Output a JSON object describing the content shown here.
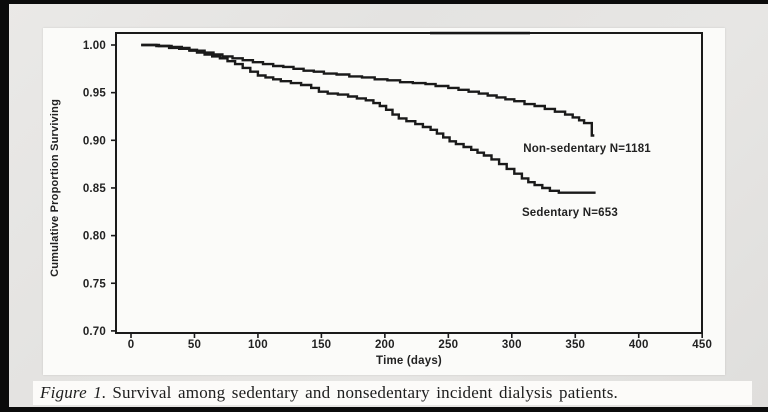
{
  "page": {
    "bg_color": "#e4e3e1",
    "frame_bar_color": "#0b0b0b",
    "panel_color": "#fbfbf9",
    "ink_color": "#1a1a1a"
  },
  "caption": {
    "prefix": "Figure 1.",
    "text": "Survival among sedentary and nonsedentary incident dialysis patients."
  },
  "chart_data": {
    "type": "line",
    "subtype": "kaplan_meier_step",
    "title": "",
    "xlabel": "Time (days)",
    "ylabel": "Cumulative Proportion Surviving",
    "xlim": [
      0,
      450
    ],
    "ylim": [
      0.7,
      1.0
    ],
    "x_ticks": [
      0,
      50,
      100,
      150,
      200,
      250,
      300,
      350,
      400,
      450
    ],
    "y_ticks": [
      "1.00",
      "0.95",
      "0.90",
      "0.85",
      "0.80",
      "0.75",
      "0.70"
    ],
    "grid": false,
    "legend_position": "inline-annotations",
    "series": [
      {
        "name": "Non-sedentary",
        "n": 1181,
        "annotation": {
          "label": "Non-sedentary N=1181",
          "day": 309,
          "value": 0.892
        },
        "points": [
          [
            8,
            1.0
          ],
          [
            22,
            0.999
          ],
          [
            32,
            0.998
          ],
          [
            40,
            0.997
          ],
          [
            46,
            0.995
          ],
          [
            52,
            0.994
          ],
          [
            58,
            0.992
          ],
          [
            65,
            0.99
          ],
          [
            72,
            0.988
          ],
          [
            80,
            0.986
          ],
          [
            88,
            0.984
          ],
          [
            96,
            0.982
          ],
          [
            104,
            0.98
          ],
          [
            112,
            0.978
          ],
          [
            120,
            0.977
          ],
          [
            128,
            0.975
          ],
          [
            136,
            0.973
          ],
          [
            144,
            0.972
          ],
          [
            152,
            0.97
          ],
          [
            162,
            0.969
          ],
          [
            172,
            0.967
          ],
          [
            182,
            0.966
          ],
          [
            192,
            0.964
          ],
          [
            202,
            0.963
          ],
          [
            212,
            0.961
          ],
          [
            222,
            0.96
          ],
          [
            232,
            0.959
          ],
          [
            240,
            0.957
          ],
          [
            250,
            0.955
          ],
          [
            258,
            0.953
          ],
          [
            266,
            0.951
          ],
          [
            274,
            0.949
          ],
          [
            281,
            0.947
          ],
          [
            288,
            0.945
          ],
          [
            295,
            0.943
          ],
          [
            302,
            0.941
          ],
          [
            310,
            0.938
          ],
          [
            318,
            0.936
          ],
          [
            326,
            0.933
          ],
          [
            334,
            0.93
          ],
          [
            342,
            0.927
          ],
          [
            348,
            0.924
          ],
          [
            353,
            0.921
          ],
          [
            357,
            0.918
          ],
          [
            363,
            0.905
          ],
          [
            365,
            0.905
          ]
        ]
      },
      {
        "name": "Sedentary",
        "n": 653,
        "annotation": {
          "label": "Sedentary N=653",
          "day": 308,
          "value": 0.825
        },
        "points": [
          [
            8,
            1.0
          ],
          [
            20,
            0.999
          ],
          [
            30,
            0.997
          ],
          [
            38,
            0.996
          ],
          [
            46,
            0.994
          ],
          [
            52,
            0.992
          ],
          [
            58,
            0.99
          ],
          [
            64,
            0.988
          ],
          [
            70,
            0.986
          ],
          [
            76,
            0.983
          ],
          [
            82,
            0.98
          ],
          [
            88,
            0.976
          ],
          [
            94,
            0.972
          ],
          [
            100,
            0.968
          ],
          [
            106,
            0.966
          ],
          [
            112,
            0.964
          ],
          [
            118,
            0.962
          ],
          [
            126,
            0.96
          ],
          [
            134,
            0.958
          ],
          [
            142,
            0.955
          ],
          [
            148,
            0.951
          ],
          [
            155,
            0.949
          ],
          [
            163,
            0.948
          ],
          [
            171,
            0.946
          ],
          [
            178,
            0.944
          ],
          [
            185,
            0.942
          ],
          [
            191,
            0.939
          ],
          [
            196,
            0.936
          ],
          [
            201,
            0.932
          ],
          [
            206,
            0.927
          ],
          [
            211,
            0.923
          ],
          [
            217,
            0.92
          ],
          [
            224,
            0.917
          ],
          [
            230,
            0.914
          ],
          [
            236,
            0.911
          ],
          [
            241,
            0.907
          ],
          [
            246,
            0.903
          ],
          [
            251,
            0.899
          ],
          [
            256,
            0.896
          ],
          [
            262,
            0.893
          ],
          [
            268,
            0.89
          ],
          [
            273,
            0.887
          ],
          [
            278,
            0.884
          ],
          [
            284,
            0.88
          ],
          [
            290,
            0.875
          ],
          [
            296,
            0.87
          ],
          [
            302,
            0.865
          ],
          [
            308,
            0.86
          ],
          [
            313,
            0.856
          ],
          [
            318,
            0.853
          ],
          [
            324,
            0.85
          ],
          [
            330,
            0.847
          ],
          [
            337,
            0.845
          ],
          [
            366,
            0.845
          ]
        ]
      }
    ]
  }
}
